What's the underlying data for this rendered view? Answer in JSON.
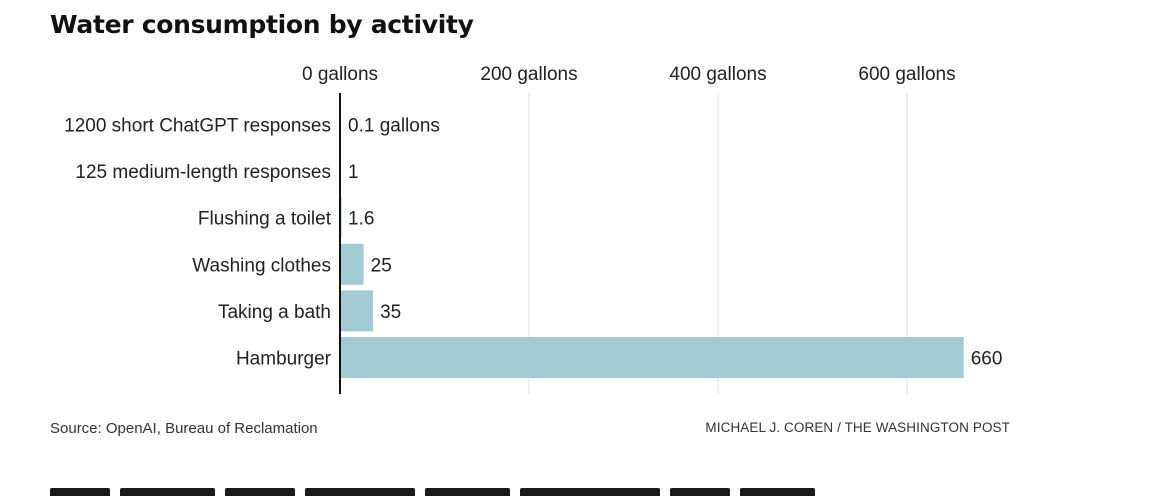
{
  "chart_data": {
    "type": "bar",
    "orientation": "horizontal",
    "title": "Water consumption by activity",
    "categories": [
      "1200 short ChatGPT responses",
      "125 medium-length responses",
      "Flushing a toilet",
      "Washing clothes",
      "Taking a bath",
      "Hamburger"
    ],
    "values": [
      0.1,
      1,
      1.6,
      25,
      35,
      660
    ],
    "value_labels": [
      "0.1 gallons",
      "1",
      "1.6",
      "25",
      "35",
      "660"
    ],
    "x_ticks": [
      0,
      200,
      400,
      600
    ],
    "x_tick_labels": [
      "0 gallons",
      "200 gallons",
      "400 gallons",
      "600 gallons"
    ],
    "xlim": [
      0,
      700
    ],
    "xlabel": "",
    "ylabel": "",
    "grid": true,
    "bar_color": "#a0cbd3",
    "axis_color": "#111111",
    "grid_color": "#dddddd"
  },
  "footer": {
    "source": "Source: OpenAI, Bureau of Reclamation",
    "credit": "MICHAEL J. COREN / THE WASHINGTON POST"
  }
}
